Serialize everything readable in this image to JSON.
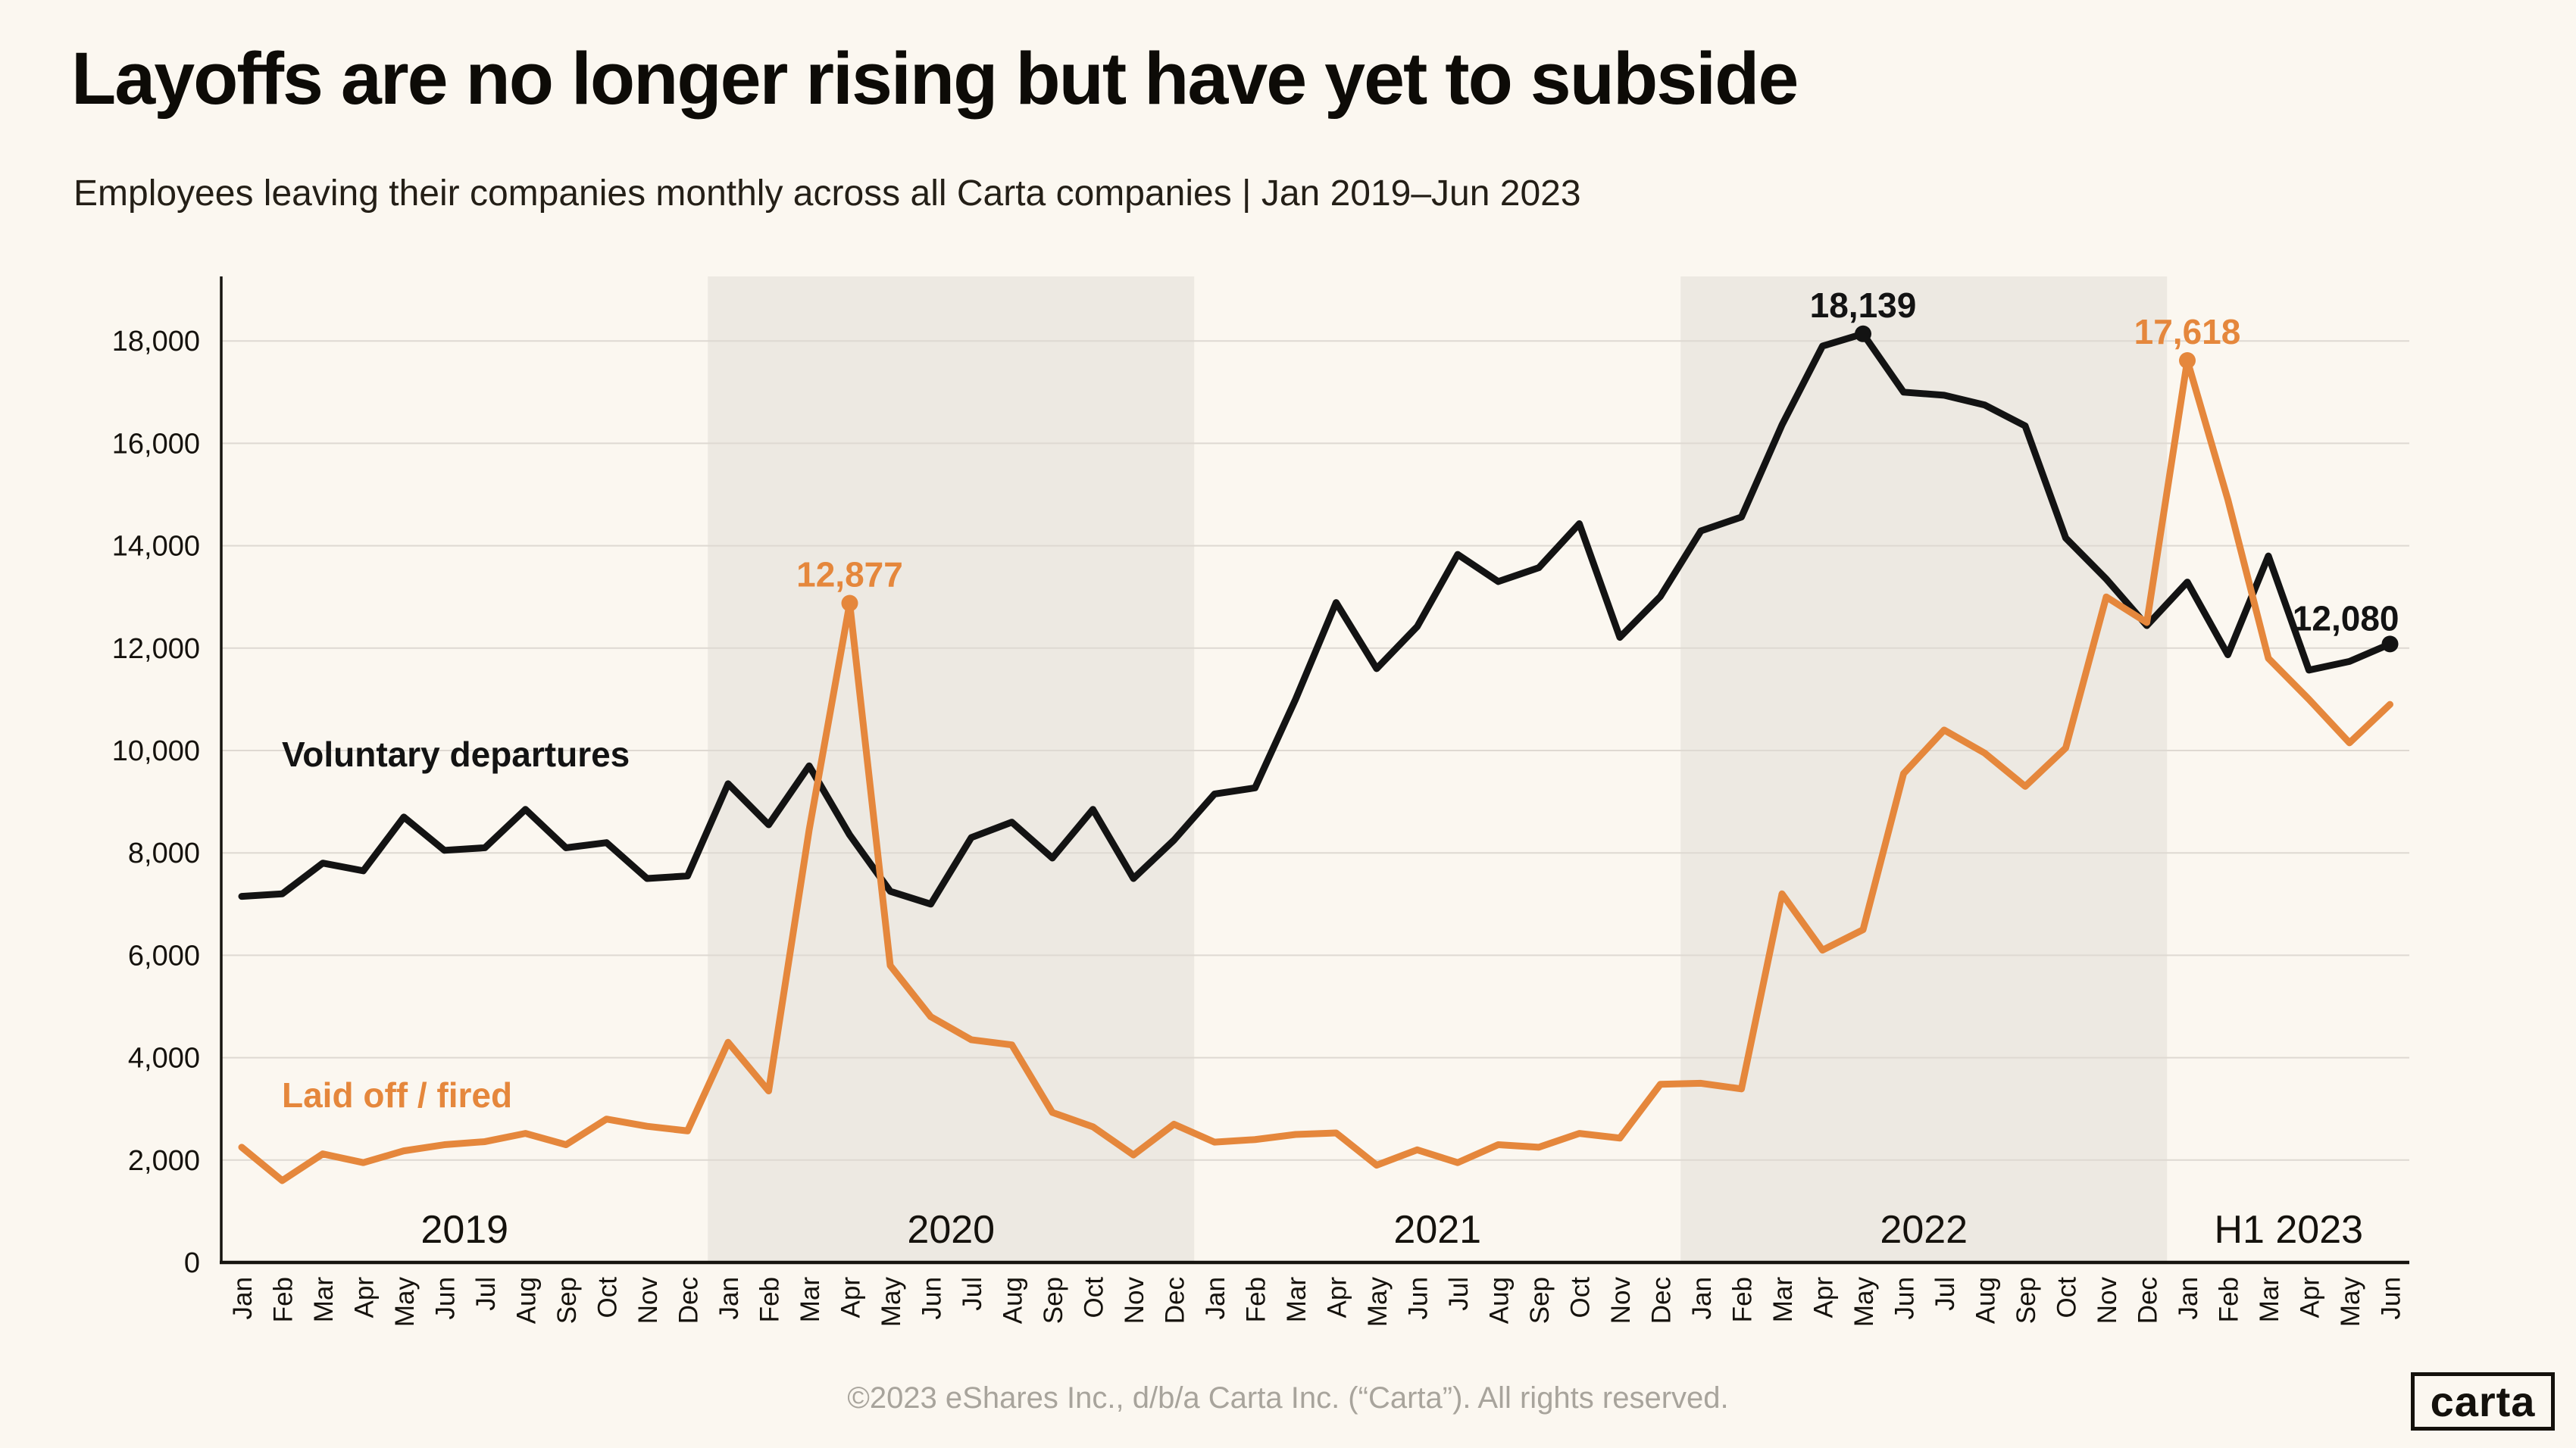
{
  "title": "Layoffs are no longer rising but have yet to subside",
  "subtitle": "Employees leaving their companies monthly across all Carta companies | Jan 2019–Jun 2023",
  "footer": "©2023 eShares Inc., d/b/a Carta Inc. (“Carta”). All rights reserved.",
  "logo": "carta",
  "colors": {
    "background": "#FBF7F0",
    "shaded_band": "#EDE9E2",
    "gridline": "#DED9D2",
    "axis": "#16140F",
    "voluntary": "#131313",
    "laid_off": "#E5873C",
    "footer_text": "#A8A49C"
  },
  "chart_data": {
    "type": "line",
    "title": "Layoffs are no longer rising but have yet to subside",
    "subtitle": "Employees leaving their companies monthly across all Carta companies | Jan 2019–Jun 2023",
    "ylabel": "",
    "xlabel": "",
    "ylim": [
      0,
      18000
    ],
    "ytick_step": 2000,
    "grid": true,
    "legend_position": "inline-labels",
    "categories": [
      "Jan",
      "Feb",
      "Mar",
      "Apr",
      "May",
      "Jun",
      "Jul",
      "Aug",
      "Sep",
      "Oct",
      "Nov",
      "Dec",
      "Jan",
      "Feb",
      "Mar",
      "Apr",
      "May",
      "Jun",
      "Jul",
      "Aug",
      "Sep",
      "Oct",
      "Nov",
      "Dec",
      "Jan",
      "Feb",
      "Mar",
      "Apr",
      "May",
      "Jun",
      "Jul",
      "Aug",
      "Sep",
      "Oct",
      "Nov",
      "Dec",
      "Jan",
      "Feb",
      "Mar",
      "Apr",
      "May",
      "Jun",
      "Jul",
      "Aug",
      "Sep",
      "Oct",
      "Nov",
      "Dec",
      "Jan",
      "Feb",
      "Mar",
      "Apr",
      "May",
      "Jun"
    ],
    "year_groups": [
      {
        "label": "2019",
        "start": 0,
        "end": 11,
        "shaded": false
      },
      {
        "label": "2020",
        "start": 12,
        "end": 23,
        "shaded": true
      },
      {
        "label": "2021",
        "start": 24,
        "end": 35,
        "shaded": false
      },
      {
        "label": "2022",
        "start": 36,
        "end": 47,
        "shaded": true
      },
      {
        "label": "H1 2023",
        "start": 48,
        "end": 53,
        "shaded": false
      }
    ],
    "series": [
      {
        "name": "Voluntary departures",
        "color": "#131313",
        "values": [
          7150,
          7200,
          7800,
          7650,
          8700,
          8050,
          8100,
          8850,
          8100,
          8200,
          7500,
          7550,
          9350,
          8550,
          9700,
          8350,
          7250,
          7000,
          8300,
          8600,
          7900,
          8850,
          7500,
          8250,
          9150,
          9270,
          11000,
          12890,
          11600,
          12420,
          13830,
          13300,
          13570,
          14430,
          12210,
          13010,
          14290,
          14560,
          16360,
          17900,
          18139,
          17000,
          16940,
          16750,
          16340,
          14150,
          13350,
          12440,
          13290,
          11870,
          13800,
          11570,
          11740,
          12080
        ]
      },
      {
        "name": "Laid off / fired",
        "color": "#E5873C",
        "values": [
          2250,
          1600,
          2120,
          1950,
          2180,
          2300,
          2360,
          2520,
          2300,
          2800,
          2660,
          2570,
          4300,
          3350,
          8450,
          12877,
          5800,
          4800,
          4350,
          4250,
          2930,
          2650,
          2100,
          2700,
          2350,
          2400,
          2500,
          2530,
          1900,
          2200,
          1950,
          2300,
          2250,
          2520,
          2430,
          3480,
          3500,
          3390,
          7200,
          6100,
          6500,
          9550,
          10400,
          9950,
          9300,
          10050,
          13000,
          12500,
          17618,
          14900,
          11800,
          11000,
          10150,
          10900
        ]
      }
    ],
    "annotations": [
      {
        "series": 0,
        "index": 40,
        "label": "18,139"
      },
      {
        "series": 1,
        "index": 15,
        "label": "12,877"
      },
      {
        "series": 1,
        "index": 48,
        "label": "17,618"
      },
      {
        "series": 0,
        "index": 53,
        "label": "12,080"
      }
    ]
  }
}
